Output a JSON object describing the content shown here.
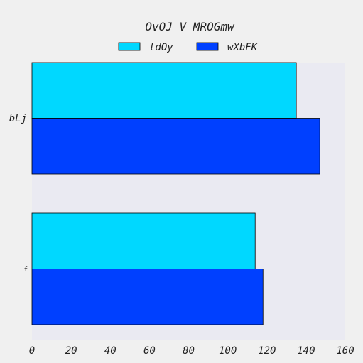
{
  "chart_data": {
    "type": "bar",
    "orientation": "horizontal",
    "title": "OvOJ V  MROGmw",
    "categories": [
      "bLj",
      "f"
    ],
    "series": [
      {
        "name": "tdOy",
        "values": [
          135,
          114
        ],
        "color": "#00d8ff"
      },
      {
        "name": "wXbFK",
        "values": [
          147,
          118
        ],
        "color": "#0040ff"
      }
    ],
    "xlim": [
      0,
      160
    ],
    "x_ticks": [
      "0",
      "20",
      "40",
      "60",
      "80",
      "100",
      "120",
      "140",
      "160"
    ],
    "xlabel": "",
    "ylabel": "",
    "legend_position": "top-center",
    "plot_background": "#eaeaf2",
    "grid": false
  }
}
